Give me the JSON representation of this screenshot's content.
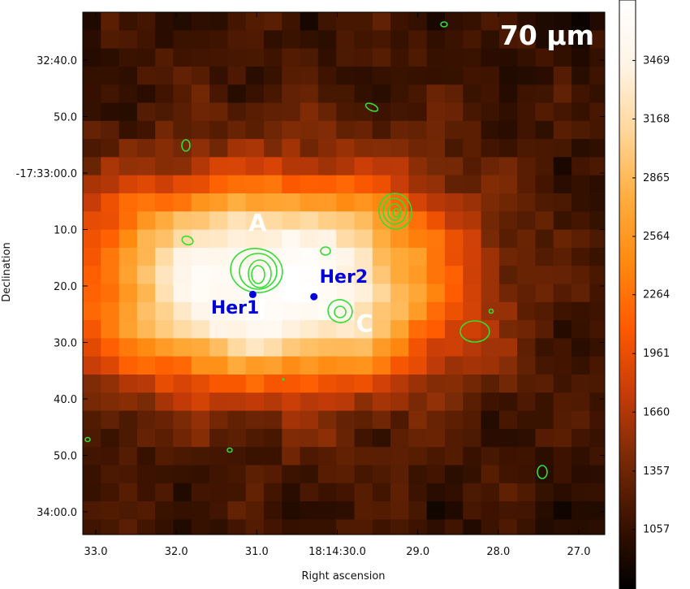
{
  "chart_data": {
    "type": "heatmap",
    "title": "70 µm",
    "xlabel": "Right ascension",
    "ylabel": "Declination",
    "x_ticks": [
      {
        "label": "33.0",
        "ra_sec": 33.0
      },
      {
        "label": "32.0",
        "ra_sec": 32.0
      },
      {
        "label": "31.0",
        "ra_sec": 31.0
      },
      {
        "label": "18:14:30.0",
        "ra_sec": 30.0
      },
      {
        "label": "29.0",
        "ra_sec": 29.0
      },
      {
        "label": "28.0",
        "ra_sec": 28.0
      },
      {
        "label": "27.0",
        "ra_sec": 27.0
      }
    ],
    "y_ticks": [
      {
        "label": "32:40.0",
        "dec_offset_arcsec": -20
      },
      {
        "label": "50.0",
        "dec_offset_arcsec": -10
      },
      {
        "label": "-17:33:00.0",
        "dec_offset_arcsec": 0
      },
      {
        "label": "10.0",
        "dec_offset_arcsec": 10
      },
      {
        "label": "20.0",
        "dec_offset_arcsec": 20
      },
      {
        "label": "30.0",
        "dec_offset_arcsec": 30
      },
      {
        "label": "40.0",
        "dec_offset_arcsec": 40
      },
      {
        "label": "50.0",
        "dec_offset_arcsec": 50
      },
      {
        "label": "34:00.0",
        "dec_offset_arcsec": 60
      }
    ],
    "colorbar": {
      "min": 750,
      "max": 3780,
      "ticks": [
        1057,
        1357,
        1660,
        1961,
        2264,
        2564,
        2865,
        3168,
        3469
      ],
      "colors": [
        "#000000",
        "#3a1200",
        "#7a2a06",
        "#c83c08",
        "#ff5a00",
        "#ff8a10",
        "#ffae40",
        "#ffd79a",
        "#fff4e6",
        "#ffffff"
      ]
    },
    "labels": [
      {
        "text": "A",
        "ra_sec": 30.99,
        "dec_offset_arcsec": 10.3,
        "color": "#ffffff"
      },
      {
        "text": "C",
        "ra_sec": 29.66,
        "dec_offset_arcsec": 28.1,
        "color": "#ffffff"
      },
      {
        "text": "Her1",
        "ra_sec": 31.27,
        "dec_offset_arcsec": 24.9,
        "color": "#0000dd"
      },
      {
        "text": "Her2",
        "ra_sec": 29.92,
        "dec_offset_arcsec": 19.4,
        "color": "#0000dd"
      }
    ],
    "sources": [
      {
        "name": "Her1",
        "ra_sec": 31.05,
        "dec_offset_arcsec": 21.5
      },
      {
        "name": "Her2",
        "ra_sec": 30.29,
        "dec_offset_arcsec": 21.9
      }
    ],
    "contour_color": "#33dd33"
  }
}
